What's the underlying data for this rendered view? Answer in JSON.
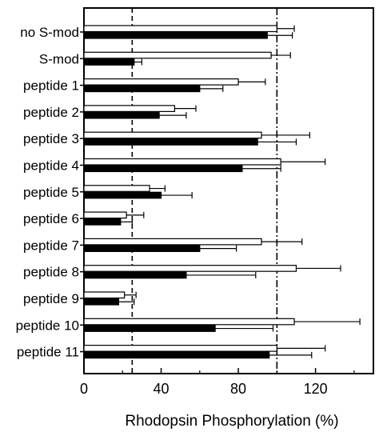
{
  "chart_data": {
    "type": "bar",
    "orientation": "horizontal",
    "categories": [
      "no S-mod",
      "S-mod",
      "peptide 1",
      "peptide 2",
      "peptide 3",
      "peptide 4",
      "peptide 5",
      "peptide 6",
      "peptide 7",
      "peptide 8",
      "peptide 9",
      "peptide 10",
      "peptide 11"
    ],
    "series": [
      {
        "color": "#ffffff",
        "values": [
          100,
          97,
          80,
          47,
          92,
          102,
          34,
          22,
          92,
          110,
          21,
          109,
          100
        ],
        "errors": [
          9,
          10,
          14,
          11,
          25,
          23,
          8,
          9,
          21,
          23,
          6,
          34,
          25
        ]
      },
      {
        "color": "#000000",
        "values": [
          95,
          26,
          60,
          39,
          90,
          82,
          40,
          19,
          60,
          53,
          18,
          68,
          96
        ],
        "errors": [
          13,
          4,
          12,
          14,
          20,
          20,
          16,
          6,
          19,
          36,
          8,
          30,
          22
        ]
      }
    ],
    "xlabel": "Rhodopsin Phosphorylation (%)",
    "xticks": [
      0,
      40,
      80,
      120
    ],
    "xlim": [
      0,
      150
    ],
    "reference_lines": [
      {
        "x": 25,
        "style": "dashed"
      },
      {
        "x": 100,
        "style": "dash-dot"
      }
    ],
    "grid": false,
    "legend": "none"
  }
}
